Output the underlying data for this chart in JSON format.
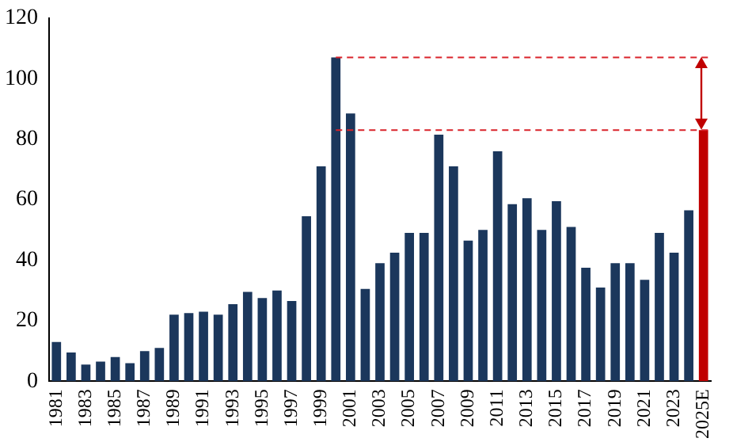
{
  "chart_data": {
    "type": "bar",
    "categories": [
      "1981",
      null,
      "1983",
      null,
      "1985",
      null,
      "1987",
      null,
      "1989",
      null,
      "1991",
      null,
      "1993",
      null,
      "1995",
      null,
      "1997",
      null,
      "1999",
      null,
      "2001",
      null,
      "2003",
      null,
      "2005",
      null,
      "2007",
      null,
      "2009",
      null,
      "2011",
      null,
      "2013",
      null,
      "2015",
      null,
      "2017",
      null,
      "2019",
      null,
      "2021",
      null,
      "2023",
      null,
      "2025E"
    ],
    "values": [
      13,
      9.5,
      5.5,
      6.5,
      8,
      6,
      10,
      11,
      22,
      22.5,
      23,
      22,
      25.5,
      29.5,
      27.5,
      30,
      26.5,
      54.5,
      71,
      107,
      88.5,
      30.5,
      39,
      42.5,
      49,
      49,
      81.5,
      71,
      46.5,
      50,
      76,
      58.5,
      60.5,
      50,
      59.5,
      51,
      37.5,
      31,
      39,
      39,
      33.5,
      49,
      42.5,
      56.5,
      83
    ],
    "colors": [
      "#1b375c",
      "#1b375c",
      "#1b375c",
      "#1b375c",
      "#1b375c",
      "#1b375c",
      "#1b375c",
      "#1b375c",
      "#1b375c",
      "#1b375c",
      "#1b375c",
      "#1b375c",
      "#1b375c",
      "#1b375c",
      "#1b375c",
      "#1b375c",
      "#1b375c",
      "#1b375c",
      "#1b375c",
      "#1b375c",
      "#1b375c",
      "#1b375c",
      "#1b375c",
      "#1b375c",
      "#1b375c",
      "#1b375c",
      "#1b375c",
      "#1b375c",
      "#1b375c",
      "#1b375c",
      "#1b375c",
      "#1b375c",
      "#1b375c",
      "#1b375c",
      "#1b375c",
      "#1b375c",
      "#1b375c",
      "#1b375c",
      "#1b375c",
      "#1b375c",
      "#1b375c",
      "#1b375c",
      "#1b375c",
      "#1b375c",
      "#c00000"
    ],
    "ylim": [
      0,
      120
    ],
    "yticks": [
      0,
      20,
      40,
      60,
      80,
      100,
      120
    ],
    "grid": false,
    "legend": false,
    "ref_lines": [
      {
        "axis": "y",
        "value": 107,
        "color": "#d9232a",
        "line_style": "dashed"
      },
      {
        "axis": "y",
        "value": 83,
        "color": "#d9232a",
        "line_style": "dashed"
      }
    ]
  }
}
